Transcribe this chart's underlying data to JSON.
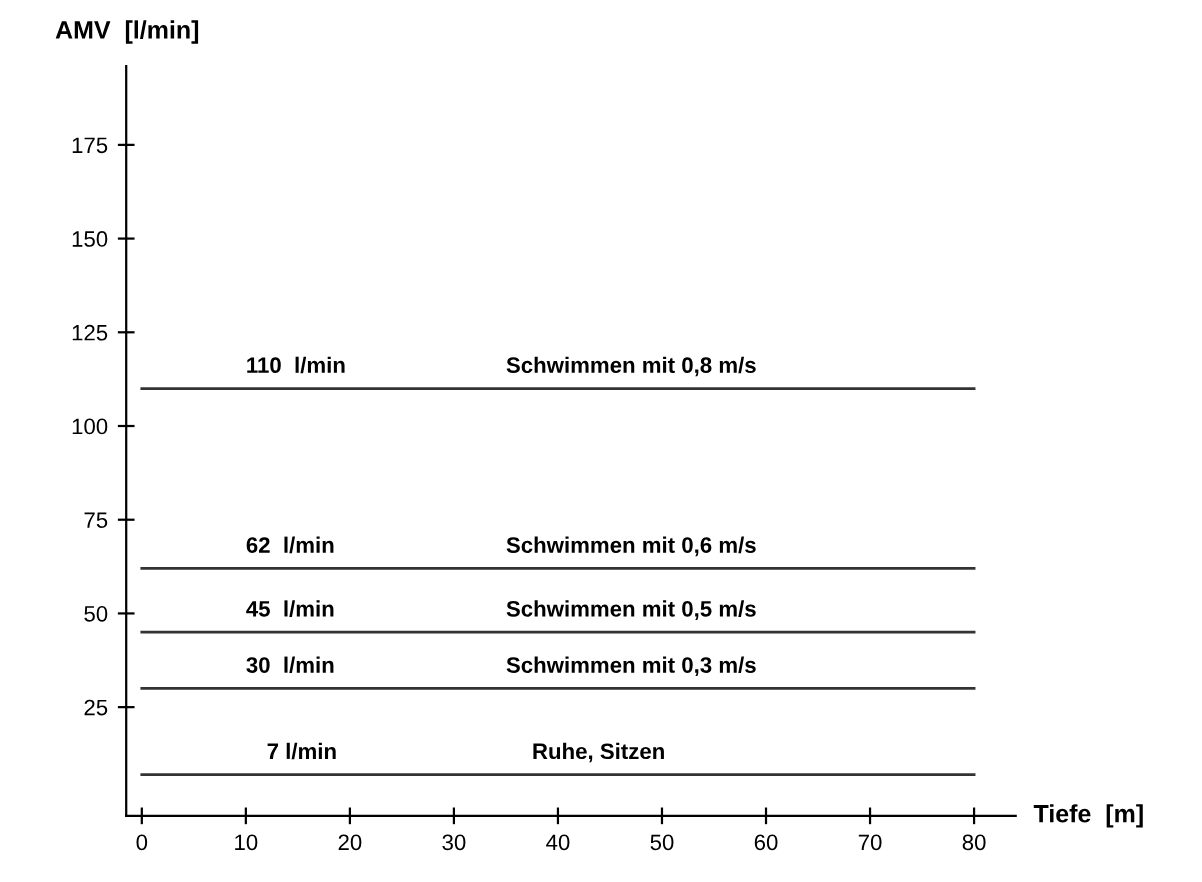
{
  "chart_data": {
    "type": "line",
    "xlabel": "Tiefe  [m]",
    "ylabel": "AMV  [l/min]",
    "x": [
      0,
      80
    ],
    "series": [
      {
        "color": "#333333",
        "values": [
          110,
          110
        ]
      },
      {
        "color": "#333333",
        "values": [
          62,
          62
        ]
      },
      {
        "color": "#333333",
        "values": [
          45,
          45
        ]
      },
      {
        "color": "#333333",
        "values": [
          30,
          30
        ]
      },
      {
        "color": "#333333",
        "values": [
          7,
          7
        ]
      }
    ],
    "annotations": [
      {
        "text": "110  l/min",
        "x": 10,
        "y": 110
      },
      {
        "text": "Schwimmen mit 0,8 m/s",
        "x": 35,
        "y": 110
      },
      {
        "text": "62  l/min",
        "x": 10,
        "y": 62
      },
      {
        "text": "Schwimmen mit 0,6 m/s",
        "x": 35,
        "y": 62
      },
      {
        "text": "45  l/min",
        "x": 10,
        "y": 45
      },
      {
        "text": "Schwimmen mit 0,5 m/s",
        "x": 35,
        "y": 45
      },
      {
        "text": "30  l/min",
        "x": 10,
        "y": 30
      },
      {
        "text": "Schwimmen mit 0,3 m/s",
        "x": 35,
        "y": 30
      },
      {
        "text": "7 l/min",
        "x": 12,
        "y": 7
      },
      {
        "text": "Ruhe, Sitzen",
        "x": 37.5,
        "y": 7
      }
    ],
    "xlim": [
      -1.5,
      84
    ],
    "ylim": [
      -4,
      196
    ],
    "xticks": [
      0,
      10,
      20,
      30,
      40,
      50,
      60,
      70,
      80
    ],
    "yticks": [
      25,
      50,
      75,
      100,
      125,
      150,
      175
    ],
    "grid": false,
    "legend": false,
    "marker": "none",
    "line_style": "solid"
  }
}
